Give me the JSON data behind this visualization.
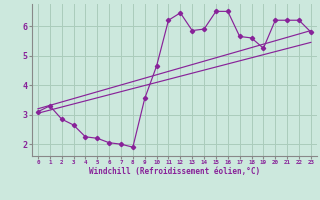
{
  "xlabel": "Windchill (Refroidissement éolien,°C)",
  "bg_color": "#cce8dd",
  "line_color": "#882299",
  "grid_color": "#aaccbb",
  "xlim": [
    -0.5,
    23.5
  ],
  "ylim": [
    1.6,
    6.75
  ],
  "yticks": [
    2,
    3,
    4,
    5,
    6
  ],
  "xticks": [
    0,
    1,
    2,
    3,
    4,
    5,
    6,
    7,
    8,
    9,
    10,
    11,
    12,
    13,
    14,
    15,
    16,
    17,
    18,
    19,
    20,
    21,
    22,
    23
  ],
  "line1_x": [
    0,
    1,
    2,
    3,
    4,
    5,
    6,
    7,
    8,
    9,
    10,
    11,
    12,
    13,
    14,
    15,
    16,
    17,
    18,
    19,
    20,
    21,
    22,
    23
  ],
  "line1_y": [
    3.1,
    3.3,
    2.85,
    2.65,
    2.25,
    2.2,
    2.05,
    2.0,
    1.9,
    3.55,
    4.65,
    6.2,
    6.45,
    5.85,
    5.9,
    6.5,
    6.5,
    5.65,
    5.6,
    5.25,
    6.2,
    6.2,
    6.2,
    5.8
  ],
  "line2_x": [
    0,
    23
  ],
  "line2_y": [
    3.05,
    5.45
  ],
  "line3_x": [
    0,
    23
  ],
  "line3_y": [
    3.2,
    5.85
  ]
}
